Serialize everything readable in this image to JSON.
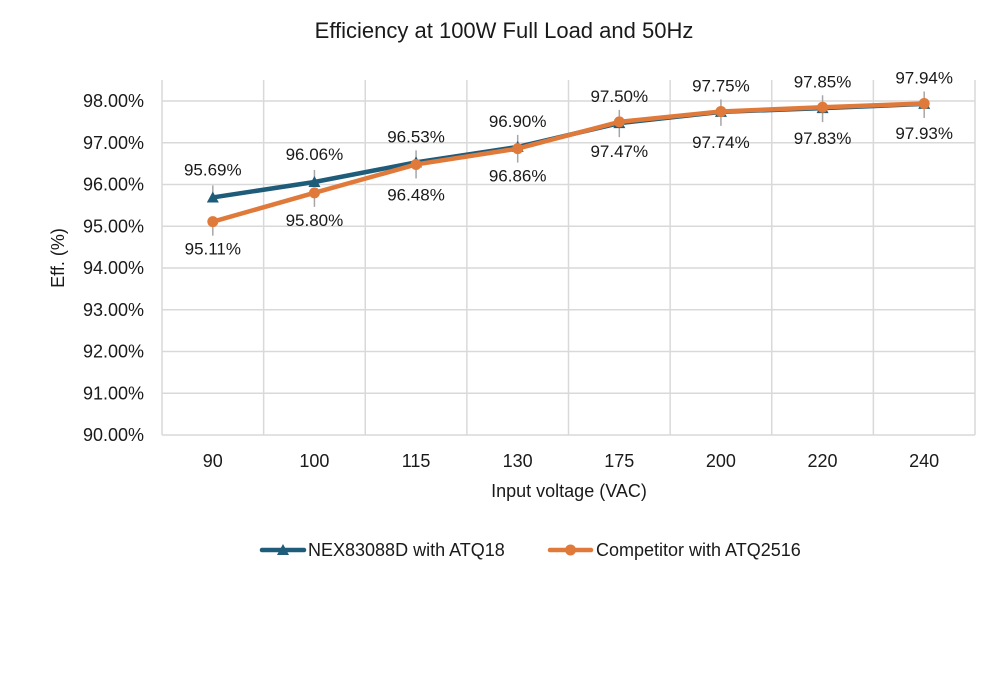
{
  "chart_data": {
    "type": "line",
    "title": "Efficiency at 100W Full Load and 50Hz",
    "xlabel": "Input voltage (VAC)",
    "ylabel": "Eff. (%)",
    "categories": [
      "90",
      "100",
      "115",
      "130",
      "175",
      "200",
      "220",
      "240"
    ],
    "ylim": [
      90,
      98
    ],
    "yticks": [
      "90.00%",
      "91.00%",
      "92.00%",
      "93.00%",
      "94.00%",
      "95.00%",
      "96.00%",
      "97.00%",
      "98.00%"
    ],
    "grid": true,
    "legend_position": "bottom",
    "series": [
      {
        "name": "NEX83088D with ATQ18",
        "color": "#1f5c7a",
        "marker": "triangle",
        "values": [
          95.69,
          96.06,
          96.53,
          96.9,
          97.47,
          97.74,
          97.83,
          97.93
        ],
        "labels": [
          "95.69%",
          "96.06%",
          "96.53%",
          "96.90%",
          "97.47%",
          "97.74%",
          "97.83%",
          "97.93%"
        ]
      },
      {
        "name": "Competitor with ATQ2516",
        "color": "#e07a3a",
        "marker": "circle",
        "values": [
          95.11,
          95.8,
          96.48,
          96.86,
          97.5,
          97.75,
          97.85,
          97.94
        ],
        "labels": [
          "95.11%",
          "95.80%",
          "96.48%",
          "96.86%",
          "97.50%",
          "97.75%",
          "97.85%",
          "97.94%"
        ]
      }
    ]
  }
}
